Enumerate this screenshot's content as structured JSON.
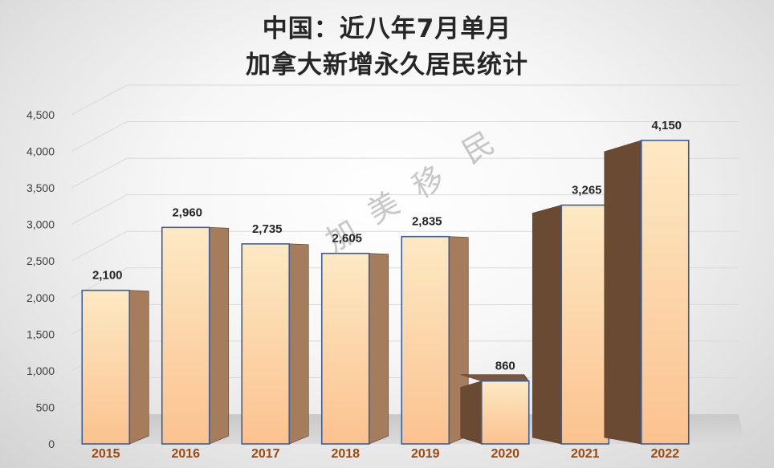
{
  "chart_data": {
    "type": "bar",
    "title_lines": [
      "中国：近八年7月单月",
      "加拿大新增永久居民统计"
    ],
    "categories": [
      "2015",
      "2016",
      "2017",
      "2018",
      "2019",
      "2020",
      "2021",
      "2022"
    ],
    "values": [
      2100,
      2960,
      2735,
      2605,
      2835,
      860,
      3265,
      4150
    ],
    "data_labels": [
      "2,100",
      "2,960",
      "2,735",
      "2,605",
      "2,835",
      "860",
      "3,265",
      "4,150"
    ],
    "y_ticks": [
      "0",
      "500",
      "1,000",
      "1,500",
      "2,000",
      "2,500",
      "3,000",
      "3,500",
      "4,000",
      "4,500"
    ],
    "ylim": [
      0,
      4500
    ],
    "grid": true,
    "legend": "none",
    "style": "3d-column",
    "watermark": [
      "加",
      "美",
      "移",
      "民"
    ],
    "colors": {
      "bar_front_light": "#fde9c4",
      "bar_front": "#fbc28f",
      "bar_side": "#6b4a33",
      "bar_outline": "#3a5f9a",
      "xtick": "#9c4a0c"
    }
  }
}
